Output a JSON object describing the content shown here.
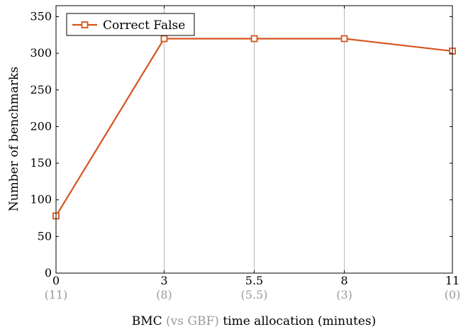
{
  "colors": {
    "series": "#d4541d",
    "grid": "#b8b8b8",
    "subtick": "#9a9a9a",
    "axis": "#000000"
  },
  "chart_data": {
    "type": "line",
    "x": [
      0,
      3,
      5.5,
      8,
      11
    ],
    "x_tick_labels": [
      "0",
      "3",
      "5.5",
      "8",
      "11"
    ],
    "x_tick_sublabels": [
      "(11)",
      "(8)",
      "(5.5)",
      "(3)",
      "(0)"
    ],
    "series": [
      {
        "name": "Correct False",
        "values": [
          78,
          320,
          320,
          320,
          303
        ],
        "marker": "square"
      }
    ],
    "xlabel": {
      "part1": "BMC",
      "part2": "(vs GBF)",
      "part3": "time allocation (minutes)"
    },
    "ylabel": "Number of benchmarks",
    "xlim": [
      0,
      11
    ],
    "ylim": [
      0,
      365
    ],
    "y_ticks": [
      0,
      50,
      100,
      150,
      200,
      250,
      300,
      350
    ],
    "grid": "vertical-only",
    "legend_position": "top-left"
  }
}
